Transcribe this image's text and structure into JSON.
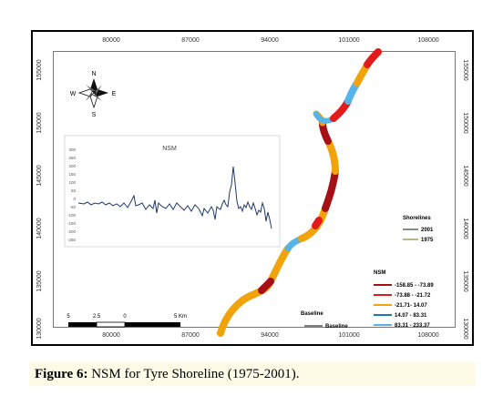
{
  "map": {
    "x_ticks": [
      "80000",
      "87000",
      "94000",
      "101000",
      "108000"
    ],
    "y_ticks": [
      "155000",
      "150000",
      "145000",
      "140000",
      "135000",
      "130000"
    ],
    "compass": {
      "n": "N",
      "s": "S",
      "e": "E",
      "w": "W"
    },
    "inset": {
      "title": "NSM",
      "y_ticks": [
        "300",
        "250",
        "200",
        "150",
        "100",
        "50",
        "0",
        "-50",
        "-100",
        "-150",
        "-200",
        "-250"
      ]
    },
    "scalebar": {
      "labels": [
        "5",
        "2.5",
        "0",
        "5 Km"
      ]
    },
    "legend_shorelines": {
      "title": "Shorelines",
      "items": [
        {
          "label": "2001",
          "color": "#2f5233"
        },
        {
          "label": "1975",
          "color": "#8c8a3f"
        }
      ]
    },
    "legend_nsm": {
      "title": "NSM",
      "items": [
        {
          "label": "-158.85 - -73.89",
          "color": "#a50f15"
        },
        {
          "label": "-73.88 - -21.72",
          "color": "#e31a1c"
        },
        {
          "label": "-21.71- 14.07",
          "color": "#f0a30a"
        },
        {
          "label": "14.07 - 83.31",
          "color": "#1f78b4"
        },
        {
          "label": "83.31 - 233.37",
          "color": "#56b4e9"
        }
      ]
    },
    "legend_baseline": {
      "title": "Baseline",
      "item_label": "Baseline"
    }
  },
  "caption": {
    "label": "Figure 6:",
    "text": " NSM for Tyre Shoreline (1975-2001)."
  }
}
